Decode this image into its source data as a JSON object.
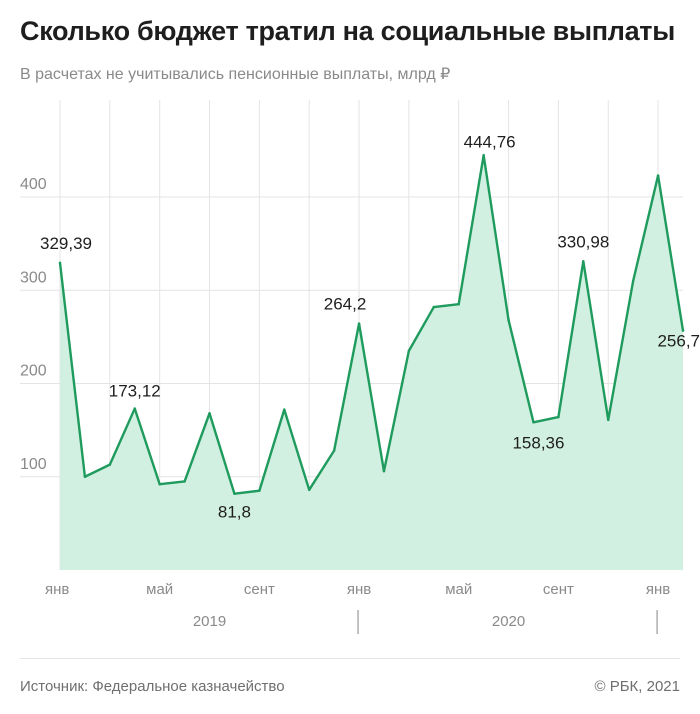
{
  "header": {
    "title": "Сколько бюджет тратил на социальные выплаты",
    "subtitle": "В расчетах не учитывались пенсионные выплаты, млрд ₽"
  },
  "footer": {
    "source": "Источник: Федеральное казначейство",
    "copyright": "© РБК, 2021"
  },
  "colors": {
    "line": "#1f9b5e",
    "area": "#d2f0e2",
    "grid": "#e4e4e4",
    "axis_text": "#8a8a8a",
    "label_text": "#1e1e1e"
  },
  "chart_data": {
    "type": "area",
    "x": [
      "2019-01",
      "2019-02",
      "2019-03",
      "2019-04",
      "2019-05",
      "2019-06",
      "2019-07",
      "2019-08",
      "2019-09",
      "2019-10",
      "2019-11",
      "2019-12",
      "2020-01",
      "2020-02",
      "2020-03",
      "2020-04",
      "2020-05",
      "2020-06",
      "2020-07",
      "2020-08",
      "2020-09",
      "2020-10",
      "2020-11",
      "2020-12",
      "2021-01",
      "2021-02"
    ],
    "values": [
      329.39,
      100,
      113,
      173.12,
      92,
      95,
      168,
      81.8,
      85,
      172,
      86,
      128,
      264.2,
      106,
      235,
      282,
      285,
      444.76,
      268,
      158.36,
      164,
      330.98,
      161,
      310,
      423,
      256.7
    ],
    "data_labels": [
      {
        "index": 0,
        "text": "329,39"
      },
      {
        "index": 3,
        "text": "173,12"
      },
      {
        "index": 7,
        "text": "81,8"
      },
      {
        "index": 12,
        "text": "264,2"
      },
      {
        "index": 17,
        "text": "444,76"
      },
      {
        "index": 19,
        "text": "158,36"
      },
      {
        "index": 21,
        "text": "330,98"
      },
      {
        "index": 25,
        "text": "256,7"
      }
    ],
    "y_ticks": [
      {
        "value": 100,
        "label": "100"
      },
      {
        "value": 200,
        "label": "200"
      },
      {
        "value": 300,
        "label": "300"
      },
      {
        "value": 400,
        "label": "400"
      }
    ],
    "x_ticks": [
      {
        "index": 0,
        "label": "янв"
      },
      {
        "index": 4,
        "label": "май"
      },
      {
        "index": 8,
        "label": "сент"
      },
      {
        "index": 12,
        "label": "янв"
      },
      {
        "index": 16,
        "label": "май"
      },
      {
        "index": 20,
        "label": "сент"
      },
      {
        "index": 24,
        "label": "янв"
      }
    ],
    "years": [
      {
        "start": 0,
        "end": 12,
        "label": "2019"
      },
      {
        "start": 12,
        "end": 24,
        "label": "2020"
      }
    ],
    "ylim": [
      0,
      500
    ],
    "grid": true
  }
}
